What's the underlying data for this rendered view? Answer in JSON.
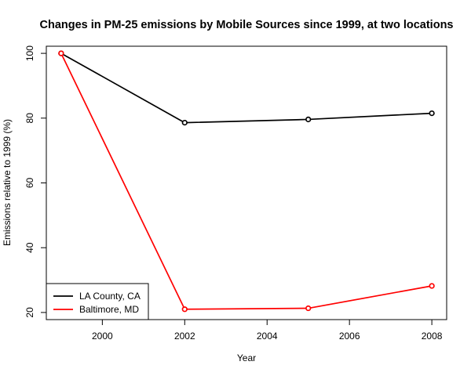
{
  "chart_data": {
    "type": "line",
    "title": "Changes in PM-25 emissions by Mobile Sources since 1999, at two locations",
    "xlabel": "Year",
    "ylabel": "Emissions relative to 1999 (%)",
    "x": [
      1999,
      2002,
      2005,
      2008
    ],
    "xlim": [
      1998.64,
      2008.36
    ],
    "ylim": [
      17.8,
      102.2
    ],
    "xticks": [
      2000,
      2002,
      2004,
      2006,
      2008
    ],
    "yticks": [
      20,
      40,
      60,
      80,
      100
    ],
    "grid": false,
    "legend_position": "bottom-left",
    "series": [
      {
        "name": "LA County, CA",
        "color": "#000000",
        "values": [
          100,
          78.6,
          79.6,
          81.5
        ]
      },
      {
        "name": "Baltimore, MD",
        "color": "#ff0000",
        "values": [
          100,
          21.0,
          21.3,
          28.2
        ]
      }
    ]
  }
}
